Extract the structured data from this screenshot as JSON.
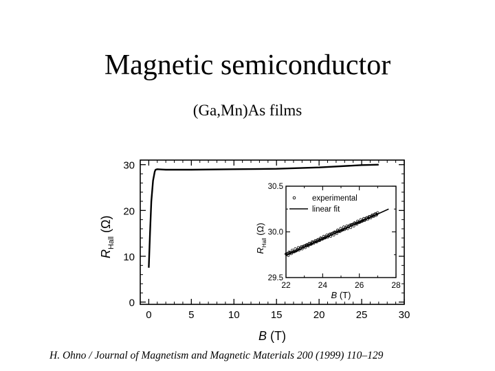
{
  "slide": {
    "title": "Magnetic semiconductor",
    "caption": "(Ga,Mn)As  films",
    "citation": "H. Ohno / Journal of Magnetism and Magnetic Materials 200 (1999) 110–129"
  },
  "chart_data": [
    {
      "type": "line",
      "xlabel": "B (T)",
      "ylabel": "R_Hall (Ω)",
      "xlim": [
        -1,
        30
      ],
      "ylim": [
        -0.5,
        31
      ],
      "xticks": [
        0,
        5,
        10,
        15,
        20,
        25,
        30
      ],
      "yticks": [
        0,
        10,
        20,
        30
      ],
      "grid": false,
      "series": [
        {
          "x": [
            0,
            0.15,
            0.3,
            0.5,
            0.7,
            0.8,
            1,
            1.5,
            2,
            5,
            10,
            15,
            20,
            25,
            27
          ],
          "y": [
            7.5,
            15,
            22,
            26.5,
            28.5,
            28.9,
            29.0,
            28.95,
            28.9,
            28.9,
            29.0,
            29.1,
            29.4,
            29.9,
            30.0
          ]
        }
      ]
    },
    {
      "type": "scatter",
      "inset": true,
      "xlabel": "B (T)",
      "ylabel": "R_Hall (Ω)",
      "xlim": [
        22,
        28
      ],
      "ylim": [
        29.5,
        30.5
      ],
      "xticks": [
        22,
        24,
        26,
        28
      ],
      "yticks": [
        29.5,
        30.0,
        30.5
      ],
      "ytick_labels": [
        "29.5",
        "30.0",
        "30.5"
      ],
      "legend": "top-left",
      "series": [
        {
          "name": "experimental",
          "marker": "circle",
          "x_range": [
            22,
            27
          ],
          "y_at_x_start": 29.75,
          "y_at_x_end": 30.2
        },
        {
          "name": "linear fit",
          "marker": "line",
          "x": [
            22,
            27.6
          ],
          "y": [
            29.74,
            30.25
          ]
        }
      ]
    }
  ]
}
